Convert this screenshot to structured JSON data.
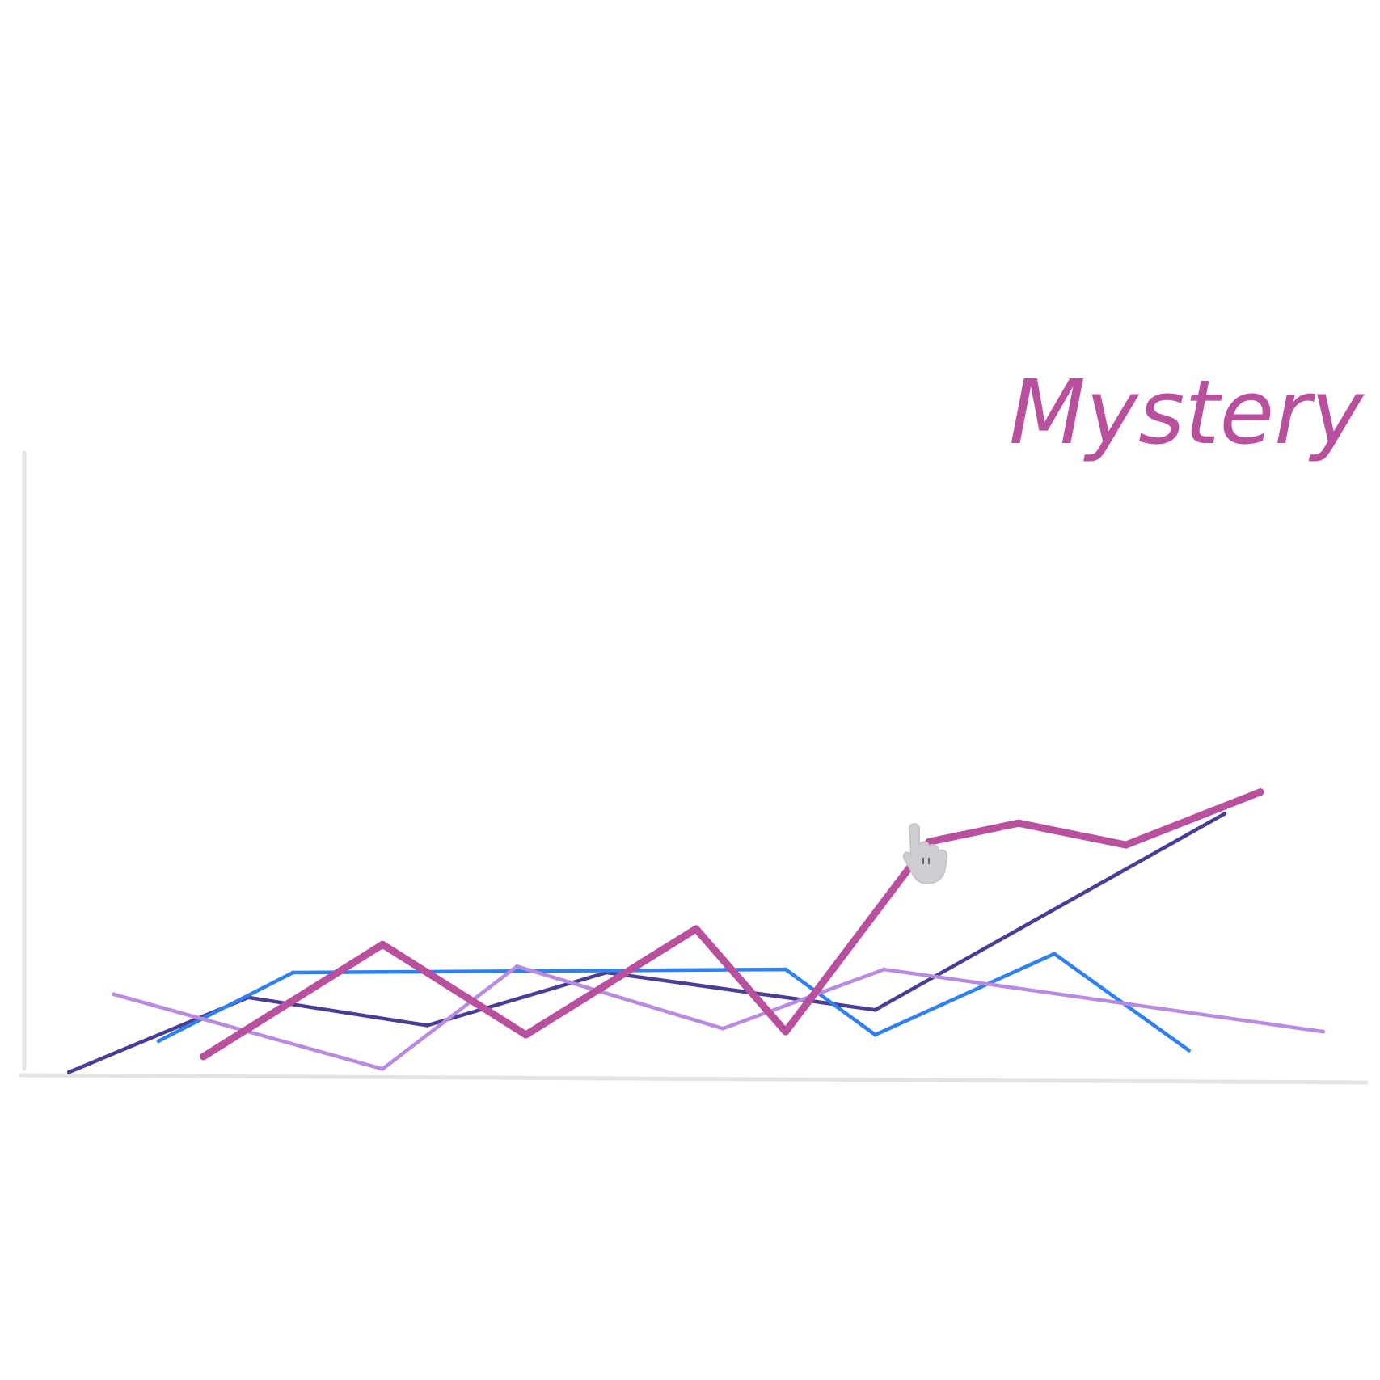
{
  "chart_data": {
    "type": "line",
    "title": "Mystery",
    "xlabel": "",
    "ylabel": "",
    "x": [
      1,
      2,
      3,
      4,
      5,
      6,
      7,
      8,
      9,
      10,
      11,
      12,
      13,
      14,
      15
    ],
    "xlim": [
      0.5,
      15.5
    ],
    "ylim": [
      0,
      10
    ],
    "grid": false,
    "legend": "none",
    "title_color": "#b8509e",
    "series": [
      {
        "color": "#4a3d94",
        "stroke": "thin",
        "points": [
          [
            1,
            0.05
          ],
          [
            3,
            1.25
          ],
          [
            5,
            0.8
          ],
          [
            7,
            1.65
          ],
          [
            10,
            1.05
          ],
          [
            13.9,
            4.2
          ]
        ]
      },
      {
        "color": "#2f80f0",
        "stroke": "thin",
        "points": [
          [
            2,
            0.55
          ],
          [
            3.5,
            1.65
          ],
          [
            9,
            1.7
          ],
          [
            10,
            0.65
          ],
          [
            12,
            1.95
          ],
          [
            13.5,
            0.4
          ]
        ]
      },
      {
        "color": "#b88ae0",
        "stroke": "thin",
        "points": [
          [
            1.5,
            1.3
          ],
          [
            4.5,
            0.1
          ],
          [
            6,
            1.75
          ],
          [
            8.3,
            0.75
          ],
          [
            10.1,
            1.7
          ],
          [
            15,
            0.7
          ]
        ]
      },
      {
        "color": "#b8509e",
        "stroke": "thick",
        "points": [
          [
            2.5,
            0.3
          ],
          [
            4.5,
            2.1
          ],
          [
            6.1,
            0.65
          ],
          [
            8,
            2.35
          ],
          [
            9,
            0.7
          ],
          [
            10.6,
            3.75
          ],
          [
            11.6,
            4.05
          ],
          [
            12.8,
            3.7
          ],
          [
            14.3,
            4.55
          ]
        ]
      }
    ]
  },
  "icons": {
    "cursor": "hand-pointer-icon"
  }
}
